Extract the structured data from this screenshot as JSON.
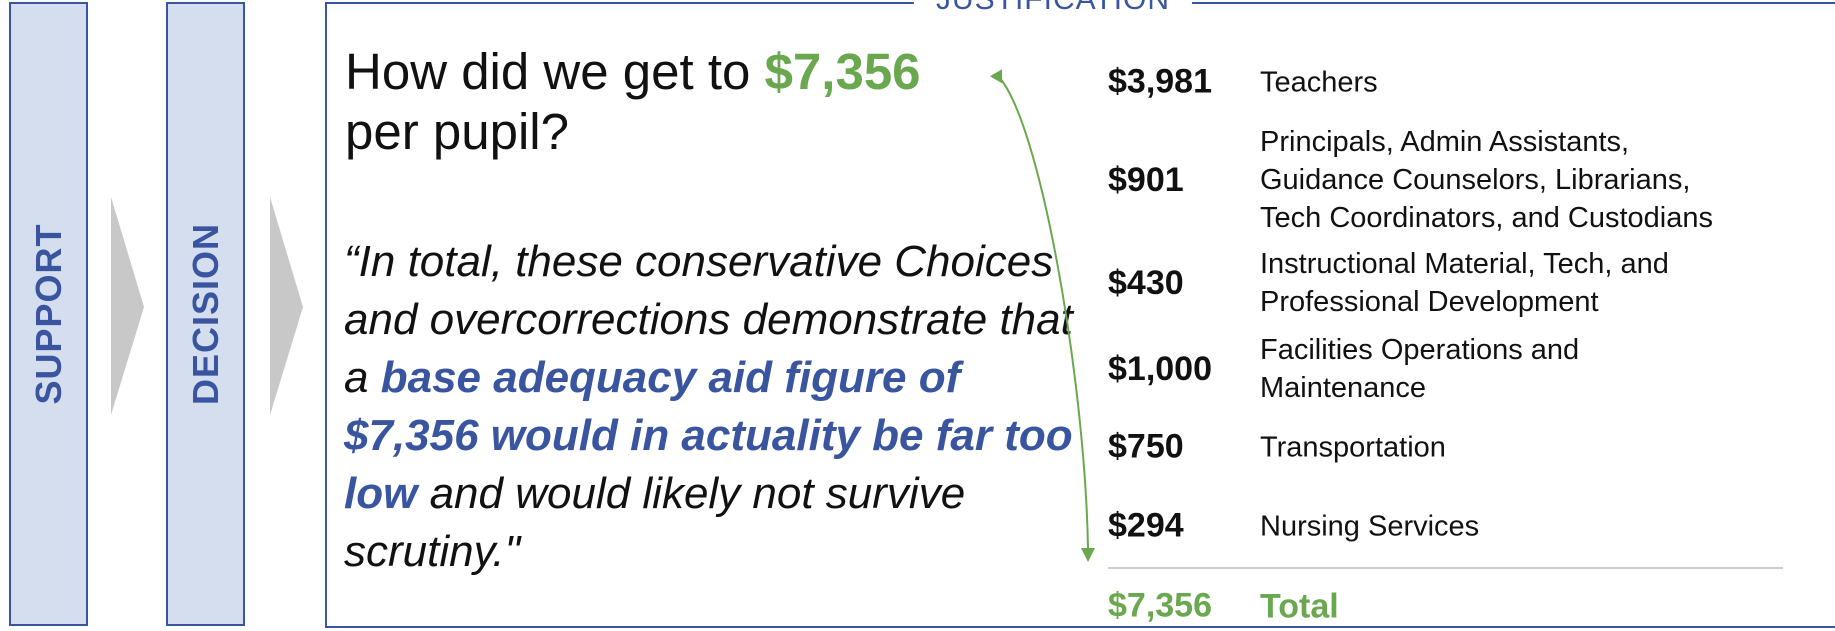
{
  "sidebar": [
    "SUPPORT",
    "DECISION"
  ],
  "section": "JUSTIFICATION",
  "heading": {
    "prefix": "How did we get to",
    "amount": "$7,356",
    "suffix": "per pupil?"
  },
  "quote": {
    "before": "“In total, these conservative Choices and overcorrections demonstrate that a",
    "emphasis": "base adequacy aid figure of $7,356 would in actuality be far too low",
    "after": "and would likely not survive scrutiny.\""
  },
  "breakdown": {
    "rows": [
      {
        "amount": "$3,981",
        "label": [
          "Teachers"
        ]
      },
      {
        "amount": "$901",
        "label": [
          "Principals, Admin Assistants,",
          "Guidance Counselors, Librarians,",
          "Tech Coordinators, and Custodians"
        ]
      },
      {
        "amount": "$430",
        "label": [
          "Instructional Material, Tech, and",
          "Professional Development"
        ]
      },
      {
        "amount": "$1,000",
        "label": [
          "Facilities Operations and",
          "Maintenance"
        ]
      },
      {
        "amount": "$750",
        "label": [
          "Transportation"
        ]
      },
      {
        "amount": "$294",
        "label": [
          "Nursing Services"
        ]
      }
    ],
    "total": {
      "amount": "$7,356",
      "label": "Total"
    }
  }
}
